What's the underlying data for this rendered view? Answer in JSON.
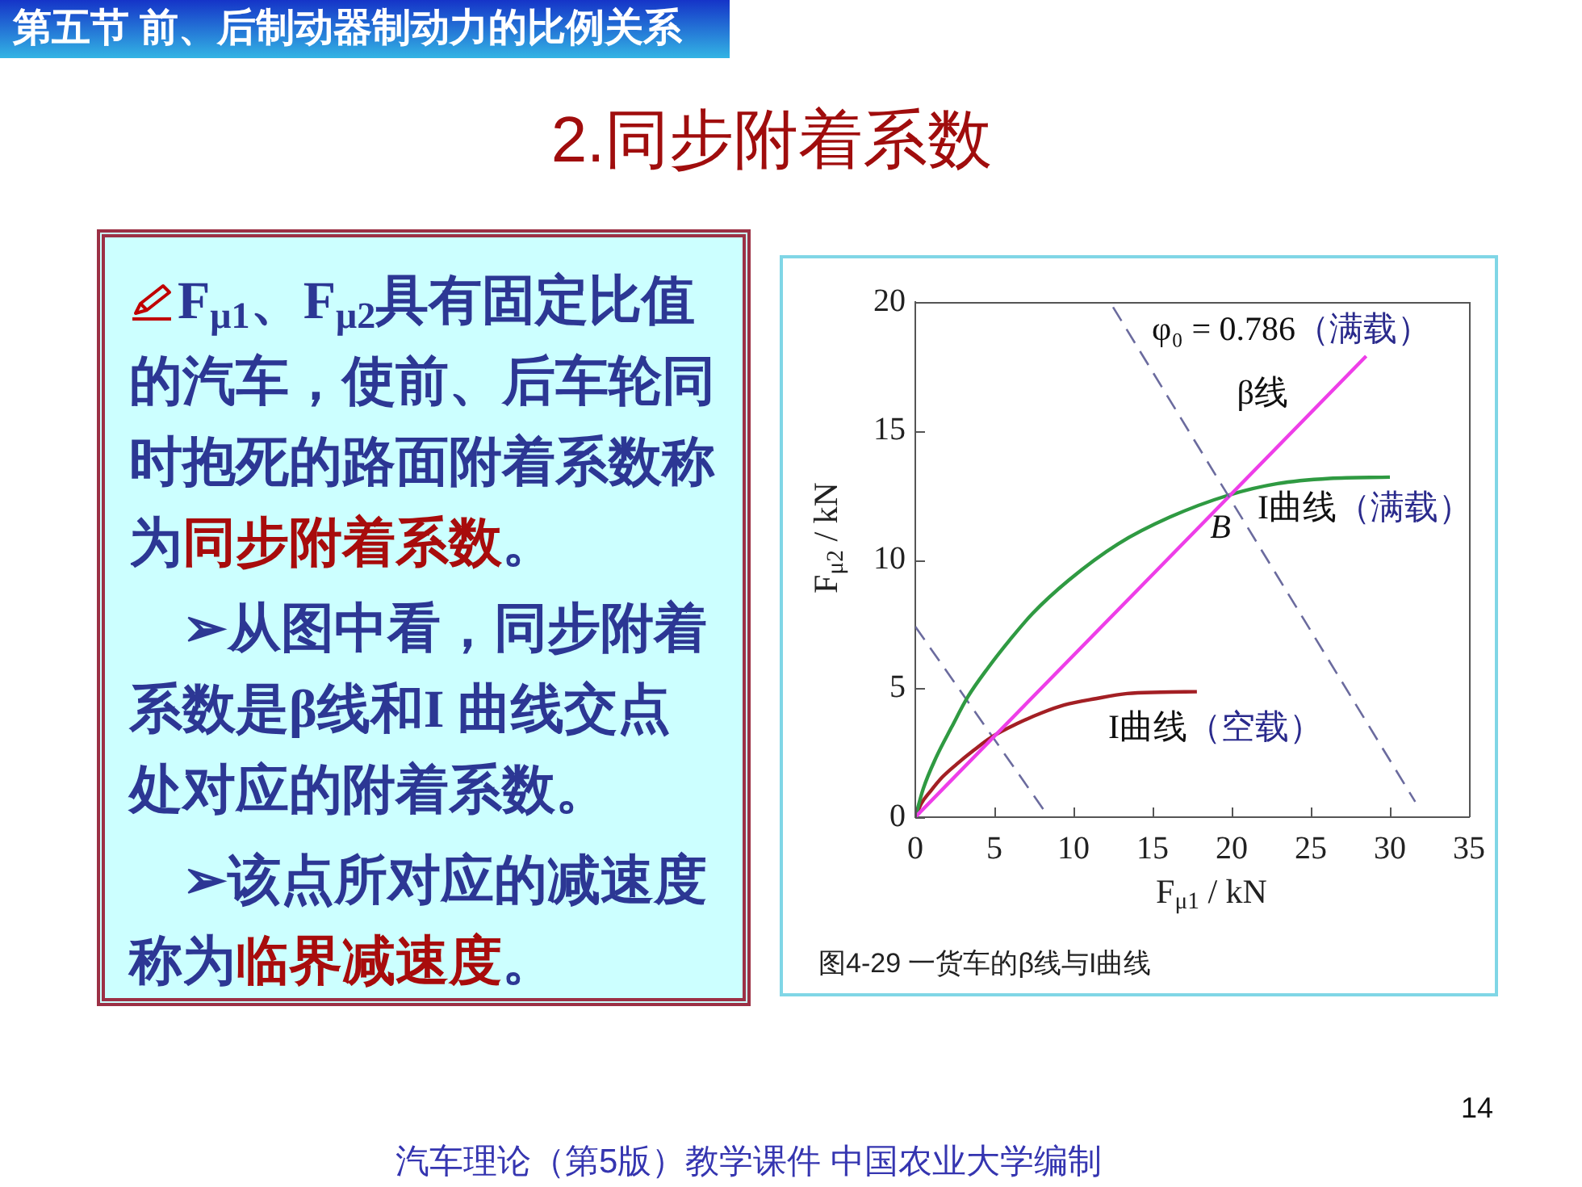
{
  "chart_data": {
    "type": "line",
    "title": "2.同步附着系数",
    "xlabel": "F$_{μ1}$ / kN",
    "ylabel": "F$_{μ2}$ / kN",
    "xlim": [
      0,
      35
    ],
    "xticks": [
      0,
      5,
      10,
      15,
      20,
      25,
      30,
      35
    ],
    "ylim": [
      0,
      20
    ],
    "yticks": [
      0,
      5,
      10,
      15,
      20
    ],
    "series": [
      {
        "name": "φ₀ = 0.786（满载）",
        "color": "#6b6b9e",
        "line_style": "dashed",
        "x": [
          12.5,
          31.6
        ],
        "values": [
          19.8,
          0.6
        ]
      },
      {
        "name": "β线",
        "color": "#ee3ee8",
        "x": [
          0,
          28.5
        ],
        "values": [
          0,
          17.9
        ]
      },
      {
        "name": "I曲线（满载）",
        "color": "#2f9a42",
        "x": [
          0,
          0.5,
          1.3,
          2.3,
          3.3,
          4.6,
          6.0,
          7.4,
          9.7,
          12.8,
          16.1,
          19.8,
          22.9,
          26.2,
          30.0
        ],
        "values": [
          0,
          1.1,
          2.3,
          3.5,
          4.65,
          5.8,
          6.9,
          7.9,
          9.2,
          10.6,
          11.65,
          12.5,
          12.95,
          13.15,
          13.2
        ]
      },
      {
        "name": "I曲线（空载）",
        "color": "#a31f24",
        "x": [
          0,
          0.4,
          0.95,
          1.7,
          2.6,
          3.7,
          4.8,
          6.5,
          8.0,
          9.4,
          11.4,
          13.4,
          15.5,
          17.8
        ],
        "values": [
          0,
          0.55,
          1.0,
          1.55,
          2.05,
          2.6,
          3.1,
          3.65,
          4.05,
          4.35,
          4.6,
          4.8,
          4.85,
          4.87
        ]
      },
      {
        "color": "#6b6b9e",
        "line_style": "dashed",
        "x": [
          0,
          8.1
        ],
        "values": [
          7.4,
          0.3
        ]
      }
    ],
    "annotations": [
      "第五节 前、后制动器制动力的比例关系",
      "F$_{μ1}$、F$_{μ2}$具有固定比值的汽车，使前、后车轮同时抱死的路面附着系数称为",
      "同步附着系数",
      "。",
      "➢从图中看，同步附着系数是β线和I 曲线交点处对应的附着系数。",
      "➢该点所对应的减速度称为",
      "临界减速度",
      "。",
      "图4-29 一货车的β线与I曲线",
      "14",
      "汽车理论（第5版）教学课件 中国农业大学编制",
      {
        "text": "B",
        "x": 19.8,
        "y": 12.5
      }
    ]
  }
}
